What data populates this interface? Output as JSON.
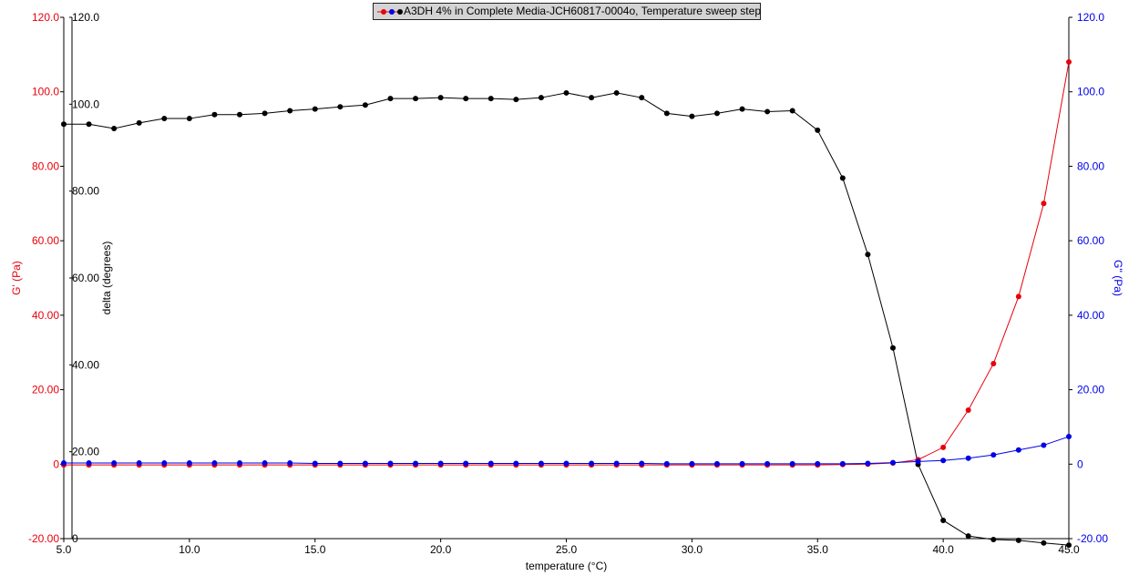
{
  "legend": {
    "label": "A3DH 4% in Complete Media-JCH60817-0004o, Temperature sweep step"
  },
  "colors": {
    "g_prime": "#e8000b",
    "g_double_prime": "#0000e8",
    "delta": "#000000"
  },
  "chart_data": {
    "type": "line",
    "title": "",
    "xlabel": "temperature (°C)",
    "xlim": [
      5.0,
      45.0
    ],
    "xticks": [
      "5.0",
      "10.0",
      "15.0",
      "20.0",
      "25.0",
      "30.0",
      "35.0",
      "40.0",
      "45.0"
    ],
    "axes": {
      "left": {
        "label": "G' (Pa)",
        "color": "#e8000b",
        "lim": [
          -20,
          120
        ],
        "ticks": [
          "-20.00",
          "0",
          "20.00",
          "40.00",
          "60.00",
          "80.00",
          "100.0",
          "120.0"
        ]
      },
      "inner_left": {
        "label": "delta (degrees)",
        "color": "#000000",
        "lim": [
          0,
          120
        ],
        "ticks": [
          "0",
          "20.00",
          "40.00",
          "60.00",
          "80.00",
          "100.0",
          "120.0"
        ]
      },
      "right": {
        "label": "G'' (Pa)",
        "color": "#0000e8",
        "lim": [
          -20,
          120
        ],
        "ticks": [
          "-20.00",
          "0",
          "20.00",
          "40.00",
          "60.00",
          "80.00",
          "100.0",
          "120.0"
        ]
      }
    },
    "x": [
      5,
      6,
      7,
      8,
      9,
      10,
      11,
      12,
      13,
      14,
      15,
      16,
      17,
      18,
      19,
      20,
      21,
      22,
      23,
      24,
      25,
      26,
      27,
      28,
      29,
      30,
      31,
      32,
      33,
      34,
      35,
      36,
      37,
      38,
      39,
      40,
      41,
      42,
      43,
      44,
      45
    ],
    "series": [
      {
        "name": "G'",
        "axis": "left",
        "color": "#e8000b",
        "values": [
          -0.2,
          -0.2,
          -0.2,
          -0.2,
          -0.2,
          -0.2,
          -0.2,
          -0.2,
          -0.2,
          -0.2,
          -0.2,
          -0.2,
          -0.2,
          -0.2,
          -0.2,
          -0.2,
          -0.2,
          -0.2,
          -0.2,
          -0.2,
          -0.2,
          -0.2,
          -0.2,
          -0.2,
          -0.2,
          -0.2,
          -0.2,
          -0.2,
          -0.2,
          -0.2,
          -0.2,
          -0.1,
          0.0,
          0.3,
          1.2,
          4.5,
          14.5,
          27,
          45,
          70,
          108
        ]
      },
      {
        "name": "G''",
        "axis": "right",
        "color": "#0000e8",
        "values": [
          0.3,
          0.3,
          0.3,
          0.3,
          0.3,
          0.3,
          0.3,
          0.3,
          0.3,
          0.3,
          0.2,
          0.2,
          0.2,
          0.2,
          0.2,
          0.2,
          0.2,
          0.2,
          0.2,
          0.2,
          0.2,
          0.2,
          0.2,
          0.2,
          0.1,
          0.1,
          0.1,
          0.1,
          0.1,
          0.1,
          0.1,
          0.1,
          0.2,
          0.4,
          0.7,
          1.0,
          1.6,
          2.5,
          3.8,
          5.1,
          7.4
        ]
      },
      {
        "name": "delta",
        "axis": "inner_left",
        "color": "#000000",
        "values": [
          95.4,
          95.4,
          94.4,
          95.7,
          96.7,
          96.7,
          97.6,
          97.6,
          97.9,
          98.5,
          98.9,
          99.4,
          99.8,
          101.3,
          101.3,
          101.5,
          101.3,
          101.3,
          101.1,
          101.5,
          102.6,
          101.5,
          102.6,
          101.5,
          97.9,
          97.2,
          97.9,
          98.9,
          98.3,
          98.5,
          94.0,
          83.0,
          65.4,
          43.9,
          17.1,
          4.2,
          0.6,
          -0.2,
          -0.4,
          -1.0,
          -1.5
        ]
      }
    ]
  }
}
